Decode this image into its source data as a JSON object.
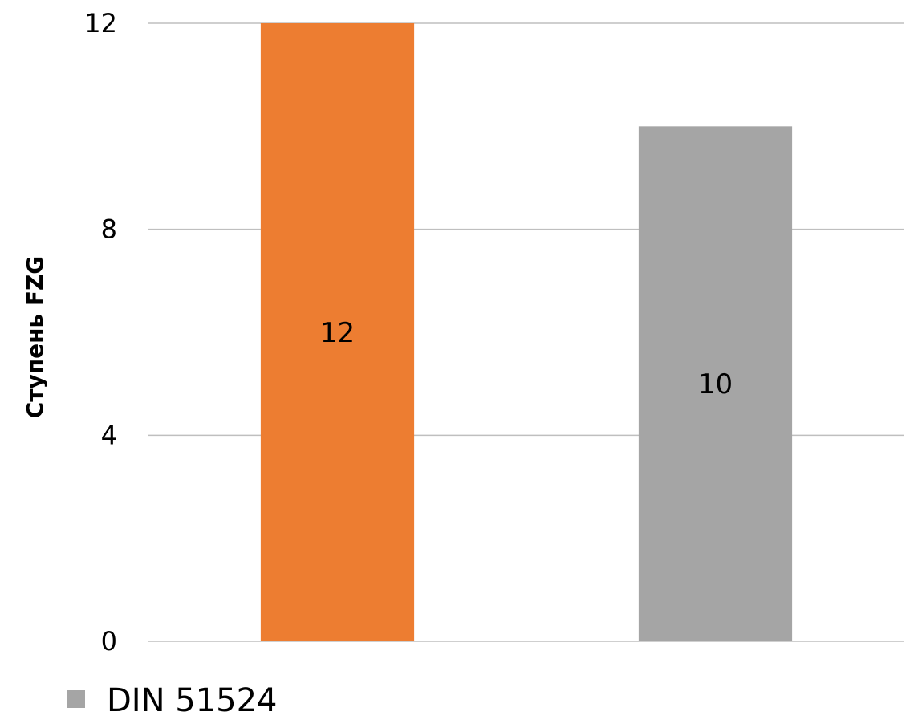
{
  "chart_data": {
    "type": "bar",
    "categories": [
      "",
      ""
    ],
    "values": [
      12,
      10
    ],
    "data_labels": [
      "12",
      "10"
    ],
    "bar_colors": [
      "#ed7d31",
      "#a5a5a5"
    ],
    "title": "",
    "xlabel": "",
    "ylabel": "Ступень FZG",
    "ylim": [
      0,
      12
    ],
    "yticks": [
      0,
      4,
      8,
      12
    ],
    "ytick_labels": [
      "0",
      "4",
      "8",
      "12"
    ],
    "grid": true,
    "legend": {
      "placement": "bottom-left",
      "entries": [
        {
          "label": "DIN 51524",
          "color": "#a5a5a5"
        }
      ]
    }
  }
}
